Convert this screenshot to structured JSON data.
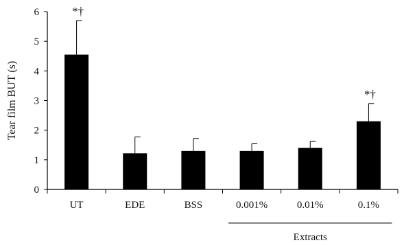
{
  "chart_data": {
    "type": "bar",
    "ylabel": "Tear film BUT (s)",
    "ylim": [
      0,
      6
    ],
    "yticks": [
      0,
      1,
      2,
      3,
      4,
      5,
      6
    ],
    "grid": false,
    "categories": [
      "UT",
      "EDE",
      "BSS",
      "0.001%",
      "0.01%",
      "0.1%"
    ],
    "values": [
      4.55,
      1.22,
      1.3,
      1.3,
      1.4,
      2.3
    ],
    "errors": [
      1.15,
      0.55,
      0.42,
      0.24,
      0.22,
      0.6
    ],
    "annotations": [
      "*†",
      "",
      "",
      "",
      "",
      "*†"
    ],
    "group": {
      "label": "Extracts",
      "from_index": 3,
      "to_index": 5
    },
    "bar_color": "#000000"
  }
}
